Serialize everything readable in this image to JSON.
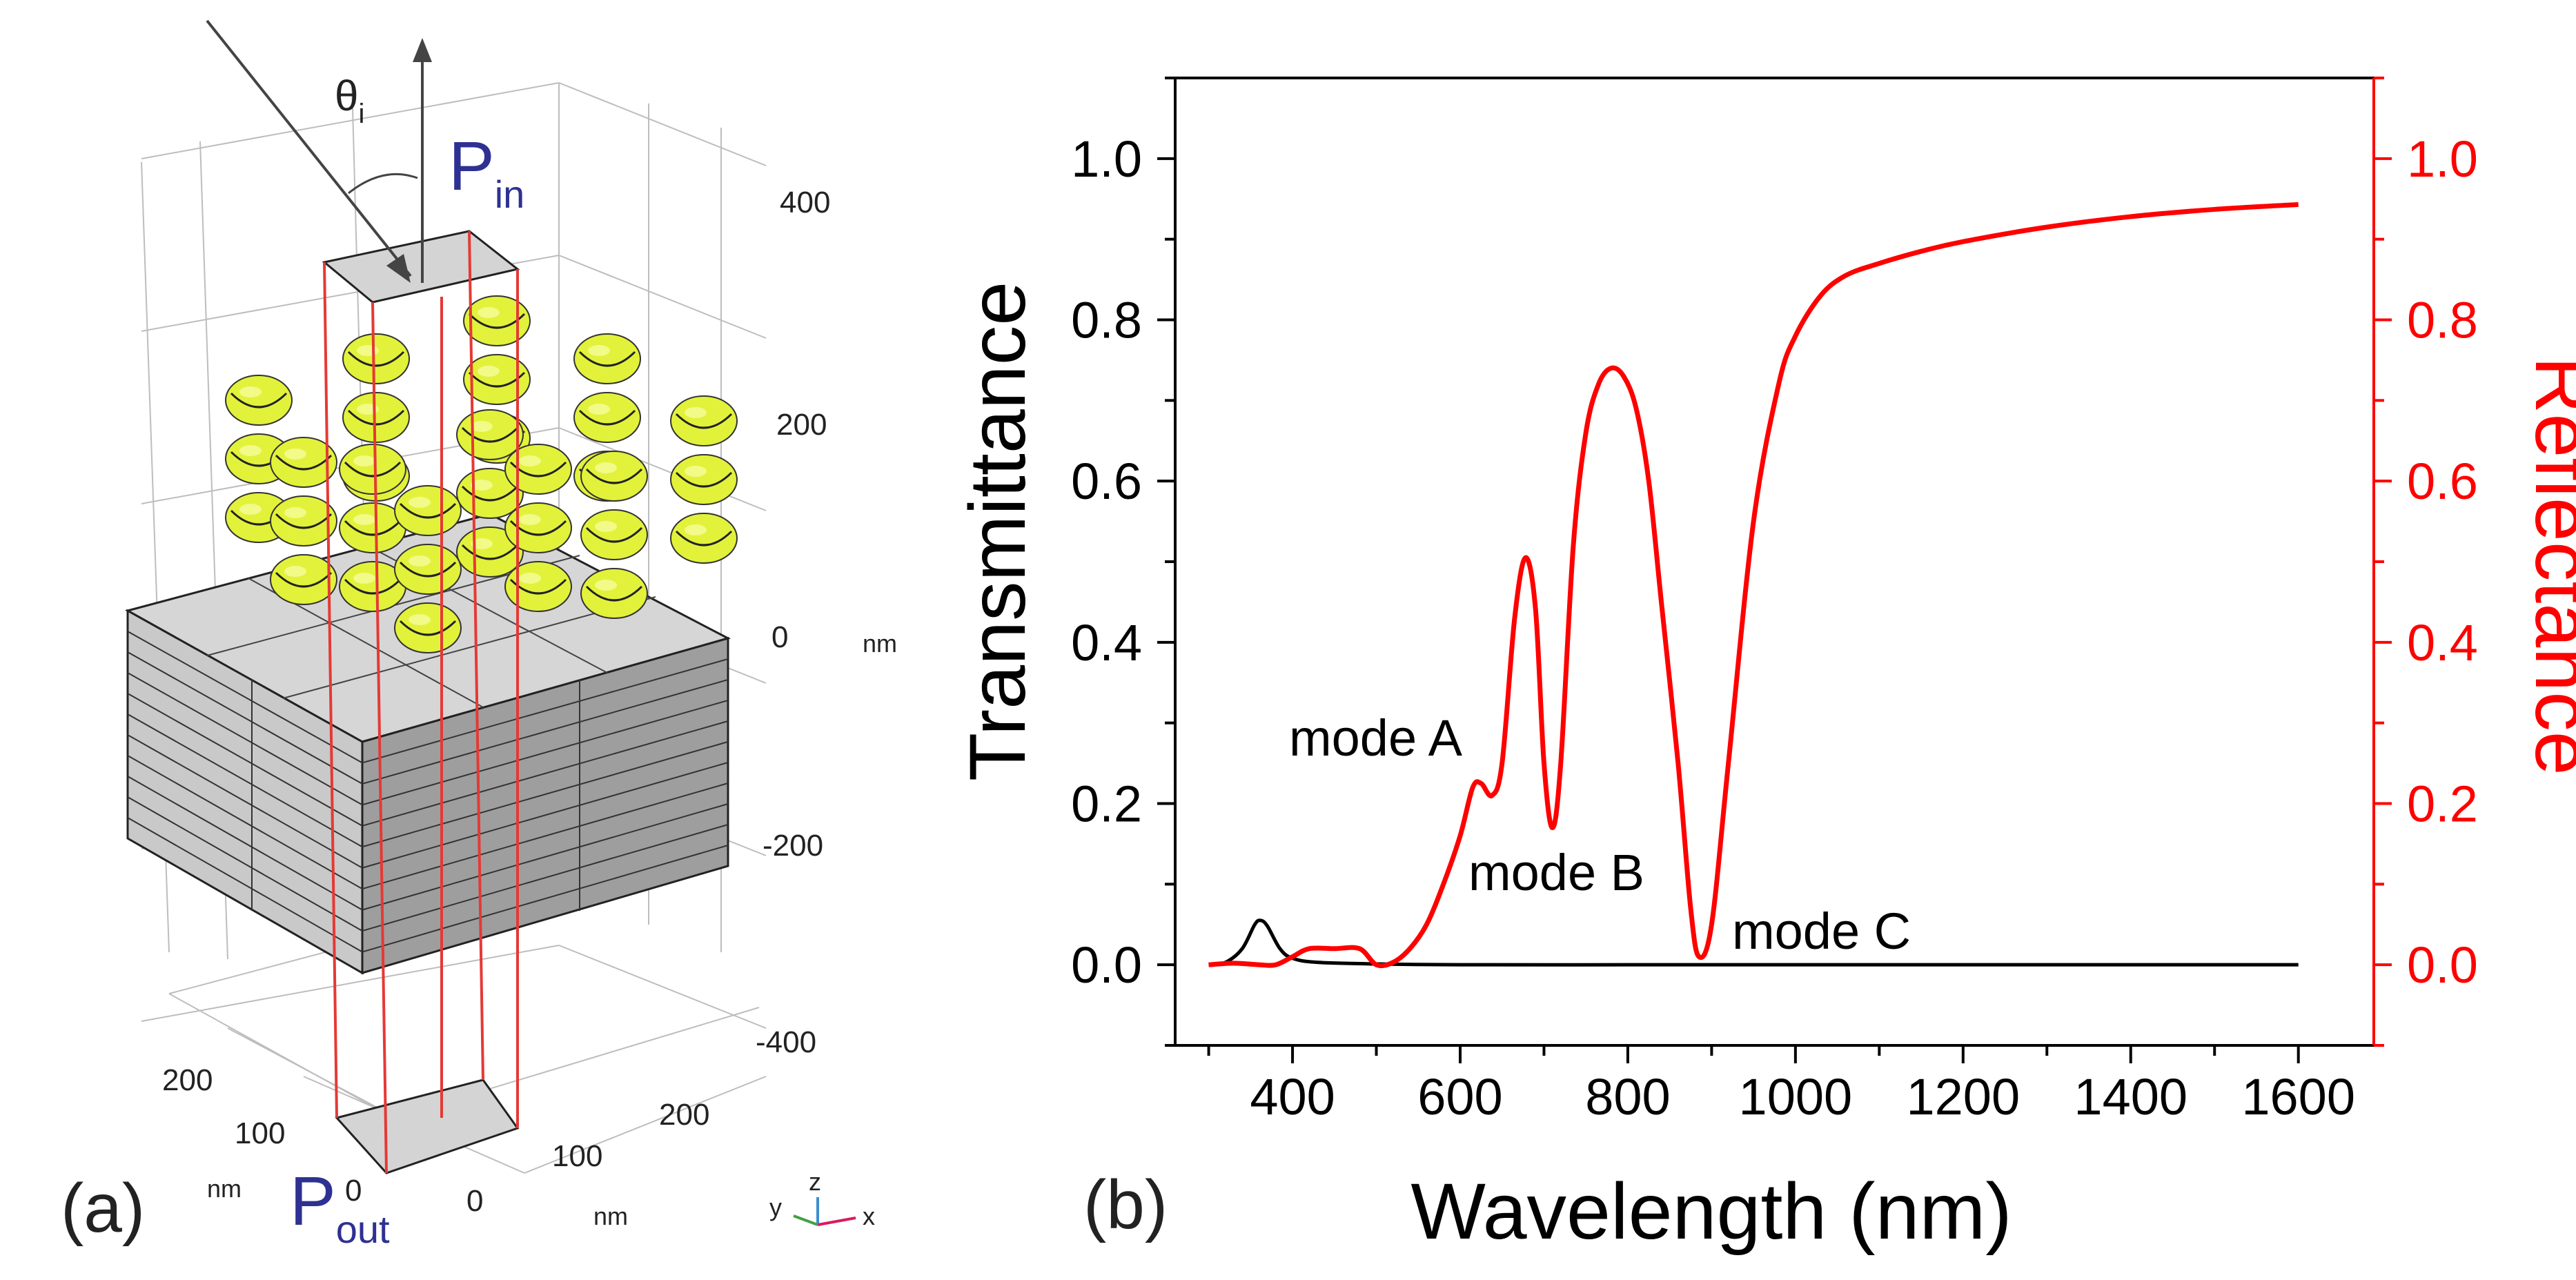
{
  "panel_a": {
    "label": "(a)",
    "theta": "θ",
    "theta_sub": "i",
    "p_in": "P",
    "p_in_sub": "in",
    "p_out": "P",
    "p_out_sub": "out",
    "z_ticks": [
      "400",
      "200",
      "0",
      "-200",
      "-400"
    ],
    "z_unit": "nm",
    "y_ticks": [
      "200",
      "100",
      "0"
    ],
    "y_unit": "nm",
    "x_ticks": [
      "200",
      "100",
      "0"
    ],
    "x_unit": "nm",
    "triad": {
      "x": "x",
      "y": "y",
      "z": "z"
    },
    "colors": {
      "helix": "#e2f23a",
      "slab": "#d4d4d4",
      "port_box": "#e53935",
      "port_text": "#2e3192"
    }
  },
  "panel_b": {
    "label": "(b)",
    "annotations": {
      "mode_a": "mode A",
      "mode_b": "mode B",
      "mode_c": "mode C"
    }
  },
  "chart_data": {
    "type": "line",
    "xlabel": "Wavelength (nm)",
    "ylabel_left": "Transmittance",
    "ylabel_right": "Reflectance",
    "xlim": [
      260,
      1690
    ],
    "ylim": [
      -0.1,
      1.1
    ],
    "x_ticks": [
      400,
      600,
      800,
      1000,
      1200,
      1400,
      1600
    ],
    "y_ticks": [
      0.0,
      0.2,
      0.4,
      0.6,
      0.8,
      1.0
    ],
    "y_tick_labels": [
      "0.0",
      "0.2",
      "0.4",
      "0.6",
      "0.8",
      "1.0"
    ],
    "x_tick_labels": [
      "400",
      "600",
      "800",
      "1000",
      "1200",
      "1400",
      "1600"
    ],
    "series": [
      {
        "name": "Transmittance",
        "axis": "left",
        "color": "#000000",
        "points": [
          [
            300,
            0.0
          ],
          [
            320,
            0.003
          ],
          [
            340,
            0.02
          ],
          [
            355,
            0.05
          ],
          [
            362,
            0.055
          ],
          [
            370,
            0.048
          ],
          [
            385,
            0.02
          ],
          [
            400,
            0.008
          ],
          [
            430,
            0.003
          ],
          [
            500,
            0.001
          ],
          [
            600,
            0.0
          ],
          [
            800,
            0.0
          ],
          [
            1000,
            0.0
          ],
          [
            1200,
            0.0
          ],
          [
            1400,
            0.0
          ],
          [
            1600,
            0.0
          ]
        ]
      },
      {
        "name": "Reflectance",
        "axis": "right",
        "color": "#ff0000",
        "points": [
          [
            300,
            0.0
          ],
          [
            330,
            0.002
          ],
          [
            360,
            0.0
          ],
          [
            380,
            0.0
          ],
          [
            400,
            0.01
          ],
          [
            420,
            0.02
          ],
          [
            450,
            0.02
          ],
          [
            480,
            0.02
          ],
          [
            500,
            0.0
          ],
          [
            520,
            0.003
          ],
          [
            540,
            0.02
          ],
          [
            560,
            0.05
          ],
          [
            580,
            0.1
          ],
          [
            600,
            0.16
          ],
          [
            615,
            0.22
          ],
          [
            625,
            0.225
          ],
          [
            638,
            0.21
          ],
          [
            650,
            0.25
          ],
          [
            665,
            0.43
          ],
          [
            678,
            0.505
          ],
          [
            690,
            0.44
          ],
          [
            700,
            0.25
          ],
          [
            710,
            0.17
          ],
          [
            720,
            0.25
          ],
          [
            735,
            0.52
          ],
          [
            750,
            0.66
          ],
          [
            765,
            0.72
          ],
          [
            780,
            0.74
          ],
          [
            795,
            0.73
          ],
          [
            810,
            0.69
          ],
          [
            825,
            0.6
          ],
          [
            840,
            0.45
          ],
          [
            860,
            0.25
          ],
          [
            875,
            0.07
          ],
          [
            885,
            0.01
          ],
          [
            900,
            0.05
          ],
          [
            920,
            0.25
          ],
          [
            950,
            0.55
          ],
          [
            980,
            0.72
          ],
          [
            1000,
            0.78
          ],
          [
            1030,
            0.83
          ],
          [
            1060,
            0.855
          ],
          [
            1100,
            0.87
          ],
          [
            1150,
            0.885
          ],
          [
            1200,
            0.897
          ],
          [
            1300,
            0.915
          ],
          [
            1400,
            0.928
          ],
          [
            1500,
            0.937
          ],
          [
            1600,
            0.943
          ]
        ]
      }
    ]
  }
}
